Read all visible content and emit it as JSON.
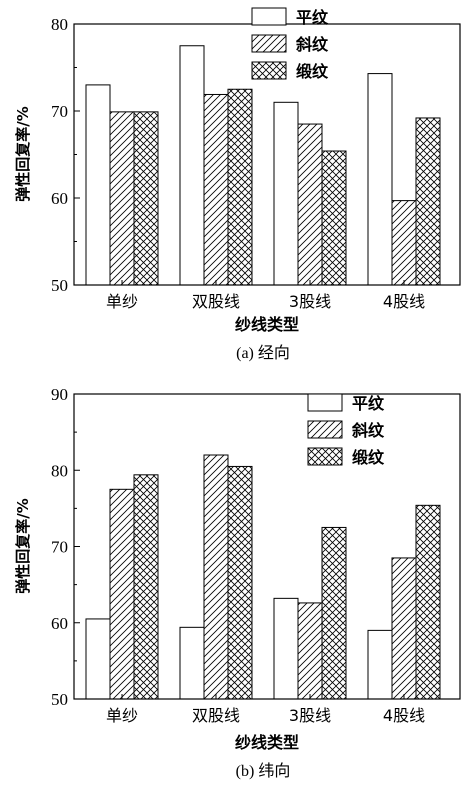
{
  "chart_data": [
    {
      "type": "bar",
      "caption": "(a) 经向",
      "xlabel": "纱线类型",
      "ylabel": "弹性回复率/%",
      "categories": [
        "单纱",
        "双股线",
        "3股线",
        "4股线"
      ],
      "ylim": [
        50,
        80
      ],
      "yticks": [
        "50",
        "60",
        "70",
        "80"
      ],
      "legend_position": "top-right",
      "series": [
        {
          "name": "平纹",
          "pattern": "plain",
          "values": [
            73.0,
            77.5,
            71.0,
            74.3
          ]
        },
        {
          "name": "斜纹",
          "pattern": "hatch",
          "values": [
            69.9,
            71.9,
            68.5,
            59.7
          ]
        },
        {
          "name": "缎纹",
          "pattern": "cross",
          "values": [
            69.9,
            72.5,
            65.4,
            69.2
          ]
        }
      ]
    },
    {
      "type": "bar",
      "caption": "(b) 纬向",
      "xlabel": "纱线类型",
      "ylabel": "弹性回复率/%",
      "categories": [
        "单纱",
        "双股线",
        "3股线",
        "4股线"
      ],
      "ylim": [
        50,
        90
      ],
      "yticks": [
        "50",
        "60",
        "70",
        "80",
        "90"
      ],
      "legend_position": "top-right",
      "series": [
        {
          "name": "平纹",
          "pattern": "plain",
          "values": [
            60.5,
            59.4,
            63.2,
            59.0
          ]
        },
        {
          "name": "斜纹",
          "pattern": "hatch",
          "values": [
            77.5,
            82.0,
            62.6,
            68.5
          ]
        },
        {
          "name": "缎纹",
          "pattern": "cross",
          "values": [
            79.4,
            80.5,
            72.5,
            75.4
          ]
        }
      ]
    }
  ],
  "colors": {
    "axis": "#000000",
    "fill": "#ffffff"
  }
}
